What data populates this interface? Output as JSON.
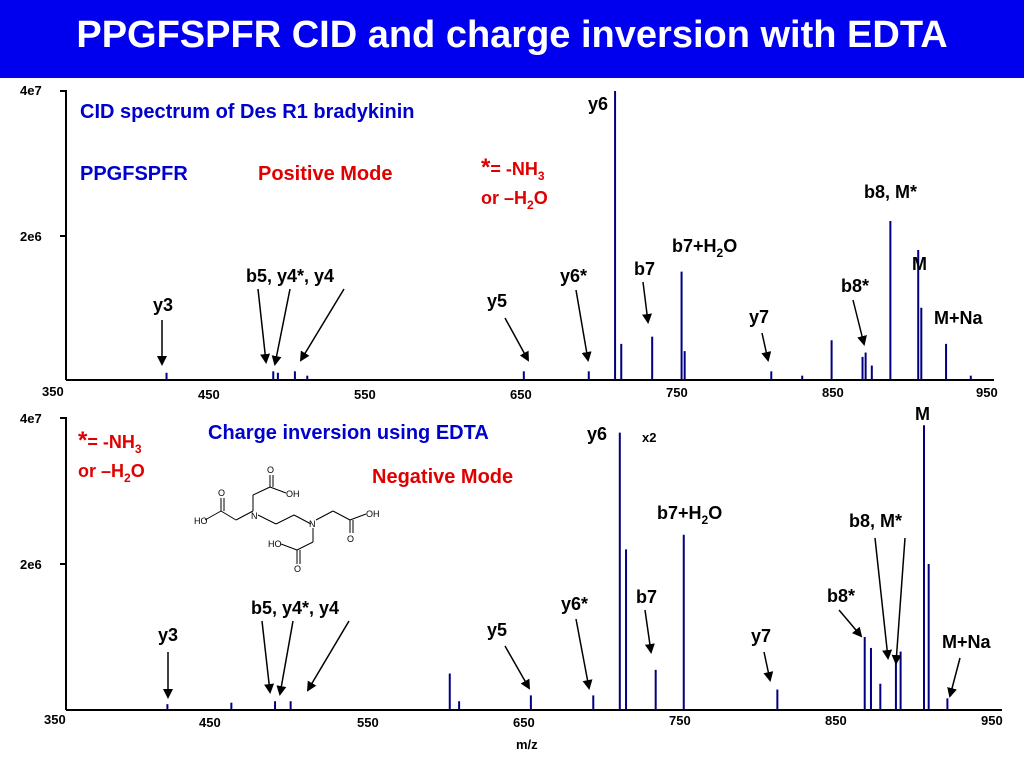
{
  "title": "PPGFSPFR CID and charge inversion with EDTA",
  "colors": {
    "title_bg": "#0000ee",
    "spectrum": "#000080",
    "blue_text": "#0000cc",
    "red_text": "#e00000"
  },
  "x_axis_label": "m/z",
  "top": {
    "heading": "CID spectrum of Des R1 bradykinin",
    "peptide": "PPGFSPFR",
    "mode": "Positive Mode",
    "legend": {
      "star": "*",
      "eq": "= -NH",
      "eq_sub": "3",
      "or": "or –H",
      "or_sub": "2",
      "or_end": "O"
    },
    "labels": {
      "y3": "y3",
      "b5y4": "b5, y4*, y4",
      "y5": "y5",
      "y6star": "y6*",
      "y6": "y6",
      "b7": "b7",
      "b7h2o": "b7+H",
      "b7h2o_sub": "2",
      "b7h2o_end": "O",
      "y7": "y7",
      "b8star": "b8*",
      "b8m": "b8, M*",
      "m": "M",
      "mna": "M+Na"
    }
  },
  "bottom": {
    "heading": "Charge inversion using EDTA",
    "mode": "Negative Mode",
    "scale_note": "x2",
    "legend": {
      "star": "*",
      "eq": "= -NH",
      "eq_sub": "3",
      "or": "or –H",
      "or_sub": "2",
      "or_end": "O"
    },
    "labels": {
      "y3": "y3",
      "b5y4": "b5, y4*, y4",
      "y5": "y5",
      "y6star": "y6*",
      "y6": "y6",
      "b7": "b7",
      "b7h2o": "b7+H",
      "b7h2o_sub": "2",
      "b7h2o_end": "O",
      "y7": "y7",
      "b8star": "b8*",
      "b8m": "b8, M*",
      "m": "M",
      "mna": "M+Na"
    },
    "structure_labels": {
      "oh1": "OH",
      "o1": "O",
      "oh2": "OH",
      "o2": "O",
      "ho1": "HO",
      "o3": "O",
      "n1": "N",
      "n2": "N",
      "ho2": "HO",
      "o4": "O"
    }
  },
  "chart_data": [
    {
      "type": "line",
      "title": "CID spectrum of Des R1 bradykinin",
      "xlabel": "",
      "ylabel": "",
      "xlim": [
        350,
        950
      ],
      "ylim": [
        0,
        40000000
      ],
      "x_ticks": [
        "350",
        "450",
        "550",
        "650",
        "750",
        "850",
        "950"
      ],
      "y_ticks": [
        "2e6",
        "4e7"
      ],
      "peaks": [
        [
          415,
          1000000.0
        ],
        [
          484,
          1200000.0
        ],
        [
          487,
          1000000.0
        ],
        [
          498,
          1200000.0
        ],
        [
          506,
          600000.0
        ],
        [
          646,
          1200000.0
        ],
        [
          688,
          1200000.0
        ],
        [
          705,
          40000000.0
        ],
        [
          709,
          5000000.0
        ],
        [
          729,
          6000000.0
        ],
        [
          748,
          15000000.0
        ],
        [
          750,
          4000000.0
        ],
        [
          806,
          1200000.0
        ],
        [
          826,
          600000.0
        ],
        [
          845,
          5500000.0
        ],
        [
          865,
          3200000.0
        ],
        [
          867,
          3800000.0
        ],
        [
          871,
          2000000.0
        ],
        [
          883,
          22000000.0
        ],
        [
          901,
          18000000.0
        ],
        [
          903,
          10000000.0
        ],
        [
          919,
          5000000.0
        ],
        [
          935,
          600000.0
        ]
      ]
    },
    {
      "type": "line",
      "title": "Charge inversion using EDTA",
      "xlabel": "m/z",
      "ylabel": "",
      "xlim": [
        350,
        950
      ],
      "ylim": [
        0,
        40000000
      ],
      "x_ticks": [
        "350",
        "450",
        "550",
        "650",
        "750",
        "850",
        "950"
      ],
      "y_ticks": [
        "2e6",
        "4e7"
      ],
      "peaks": [
        [
          415,
          800000.0
        ],
        [
          456,
          1000000.0
        ],
        [
          484,
          1200000.0
        ],
        [
          494,
          1200000.0
        ],
        [
          596,
          5000000.0
        ],
        [
          602,
          1200000.0
        ],
        [
          648,
          2000000.0
        ],
        [
          688,
          2000000.0
        ],
        [
          705,
          38000000.0
        ],
        [
          709,
          22000000.0
        ],
        [
          728,
          5500000.0
        ],
        [
          746,
          24000000.0
        ],
        [
          806,
          2800000.0
        ],
        [
          862,
          10000000.0
        ],
        [
          866,
          8500000.0
        ],
        [
          872,
          3600000.0
        ],
        [
          882,
          6500000.0
        ],
        [
          885,
          8000000.0
        ],
        [
          900,
          39000000.0
        ],
        [
          903,
          20000000.0
        ],
        [
          915,
          1600000.0
        ]
      ]
    }
  ]
}
